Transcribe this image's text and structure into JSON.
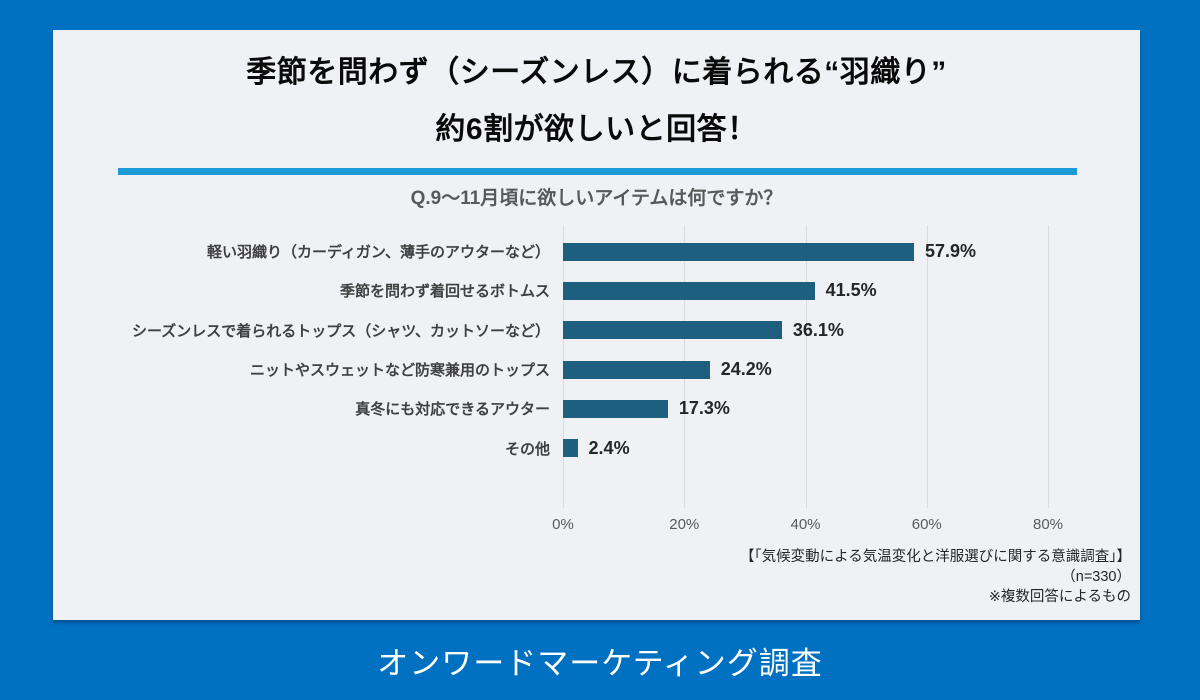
{
  "page": {
    "background_color": "#0070c1",
    "card_background": "#eff1f4",
    "divider_color": "#1a9bd8"
  },
  "header": {
    "title_line1": "季節を問わず（シーズンレス）に着られる“羽織り”",
    "title_line2": "約6割が欲しいと回答！"
  },
  "chart_data": {
    "type": "bar",
    "orientation": "horizontal",
    "title": "Q.9〜11月頃に欲しいアイテムは何ですか？",
    "categories": [
      "軽い羽織り（カーディガン、薄手のアウターなど）",
      "季節を問わず着回せるボトムス",
      "シーズンレスで着られるトップス（シャツ、カットソーなど）",
      "ニットやスウェットなど防寒兼用のトップス",
      "真冬にも対応できるアウター",
      "その他"
    ],
    "values": [
      57.9,
      41.5,
      36.1,
      24.2,
      17.3,
      2.4
    ],
    "value_labels": [
      "57.9%",
      "41.5%",
      "36.1%",
      "24.2%",
      "17.3%",
      "2.4%"
    ],
    "x_tick_labels": [
      "0%",
      "20%",
      "40%",
      "60%",
      "80%"
    ],
    "x_tick_values": [
      0,
      20,
      40,
      60,
      80
    ],
    "xlim": [
      0,
      88
    ],
    "grid": true,
    "legend_position": "none",
    "bar_color": "#1e5f80"
  },
  "source_note": {
    "line1": "【「気候変動による気温変化と洋服選びに関する意識調査」】",
    "line2": "（n=330）",
    "line3": "※複数回答によるもの"
  },
  "footer": {
    "label": "オンワードマーケティング調査"
  }
}
